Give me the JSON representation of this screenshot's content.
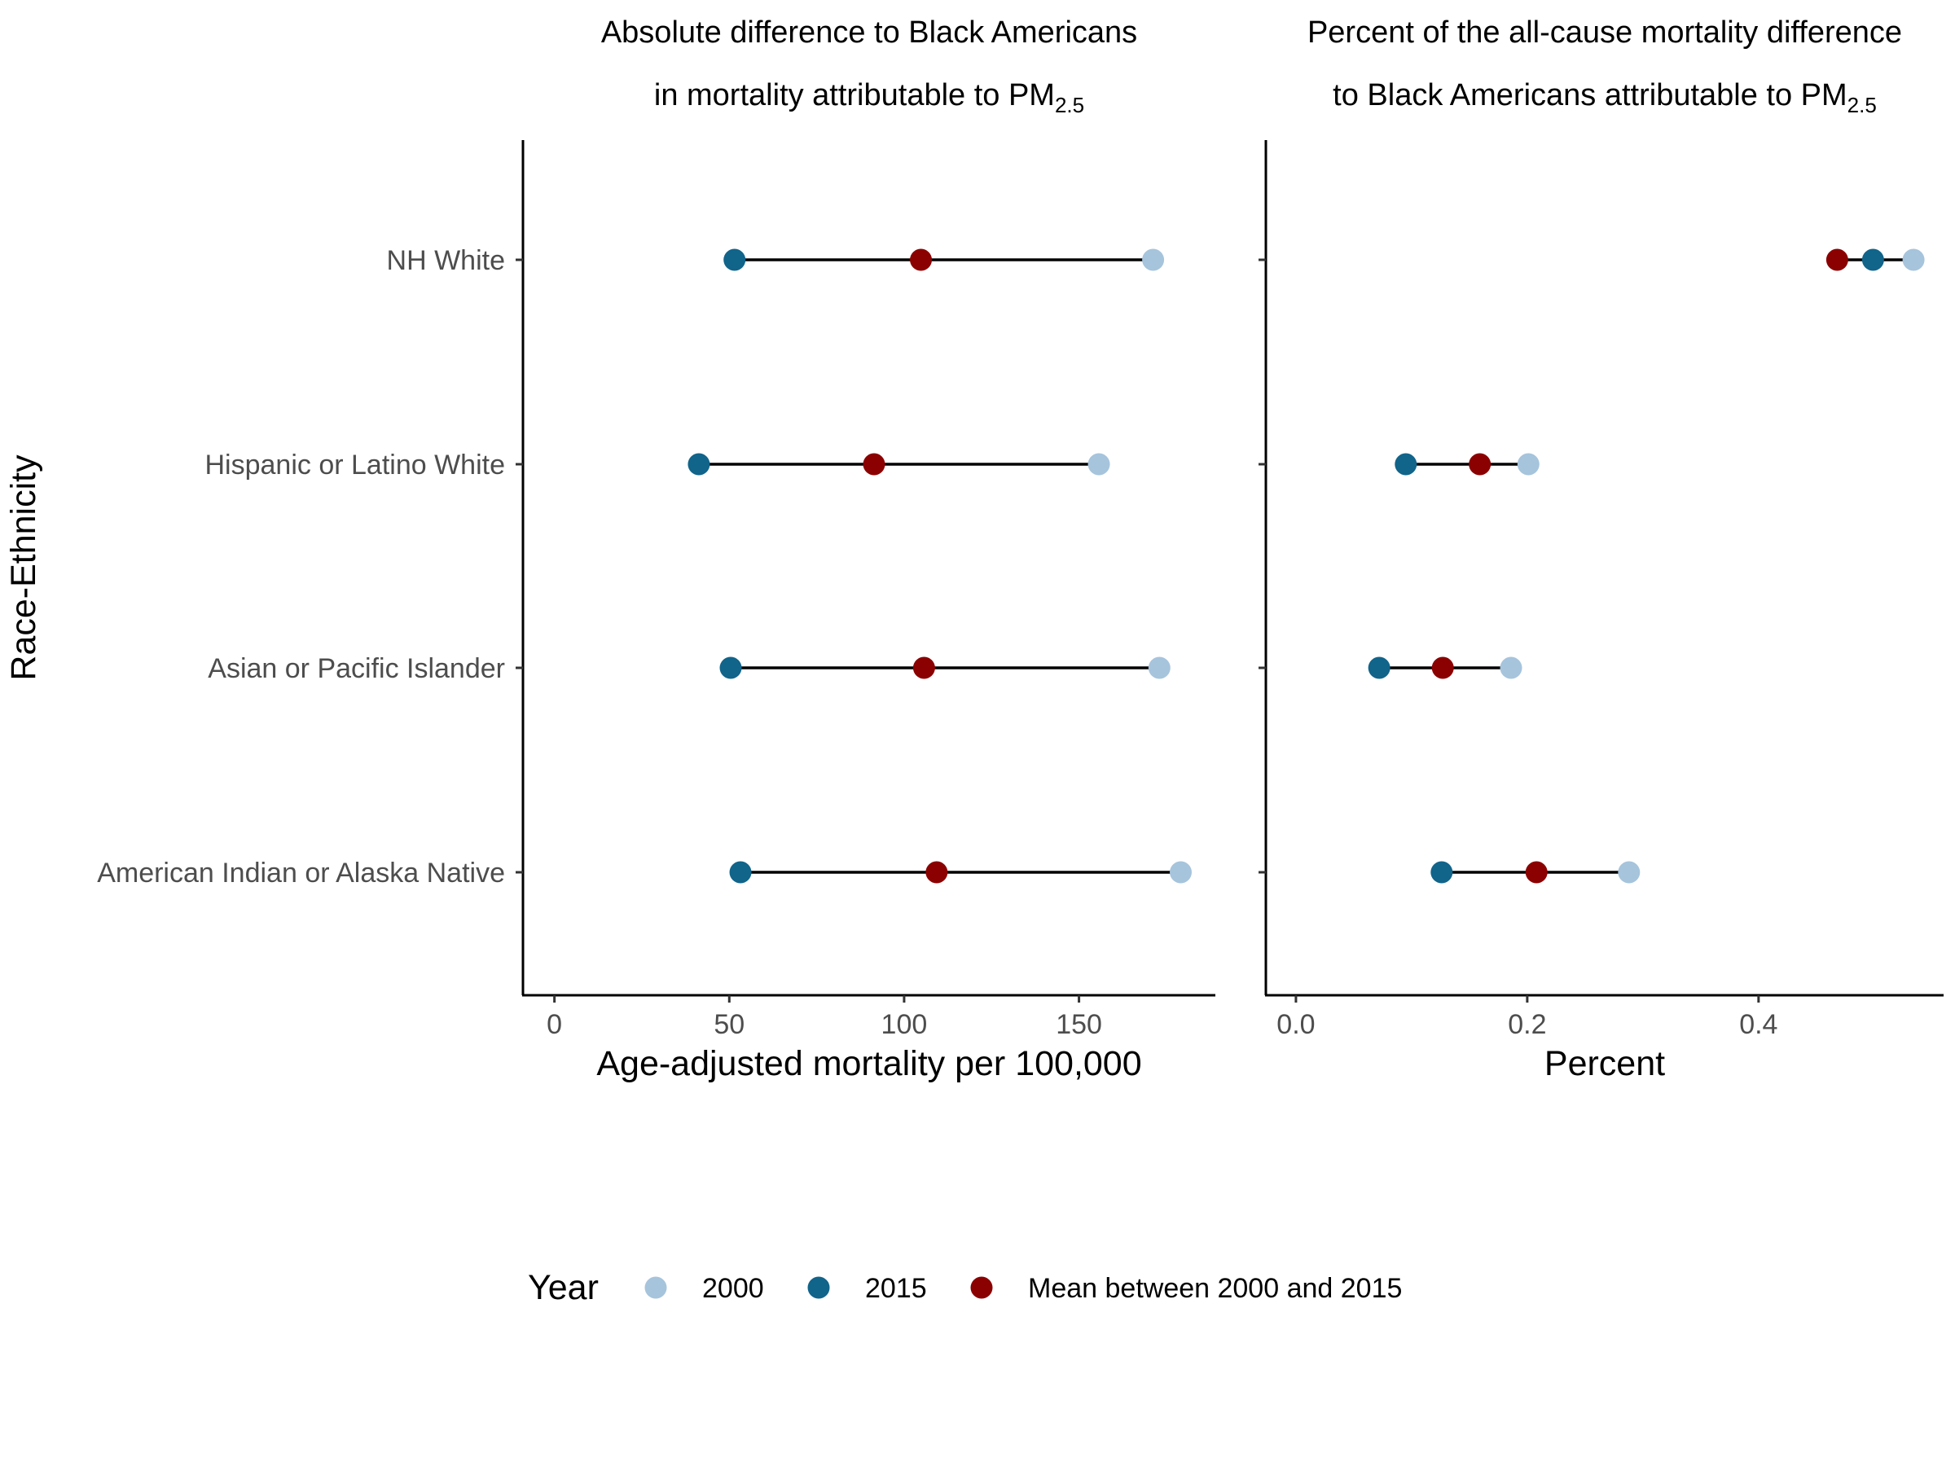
{
  "chart_data": {
    "type": "dumbbell",
    "y_axis_label": "Race-Ethnicity",
    "categories": [
      "NH White",
      "Hispanic or Latino White",
      "Asian or Pacific Islander",
      "American Indian or Alaska Native"
    ],
    "legend": {
      "title": "Year",
      "placement": "bottom",
      "entries": [
        {
          "key": "y2000",
          "label": "2000",
          "color": "#a6c4dc"
        },
        {
          "key": "y2015",
          "label": "2015",
          "color": "#11648a"
        },
        {
          "key": "mean",
          "label": "Mean between 2000 and 2015",
          "color": "#8b0000"
        }
      ]
    },
    "panels": [
      {
        "title_line1": "Absolute difference to Black Americans",
        "title_line2": "in mortality attributable to PM",
        "title_sub": "2.5",
        "xlabel": "Age-adjusted mortality per 100,000",
        "xlim": [
          -9,
          189
        ],
        "ticks": [
          0,
          50,
          100,
          150
        ],
        "tick_labels": [
          "0",
          "50",
          "100",
          "150"
        ],
        "data": [
          {
            "category": "NH White",
            "y2000": 171.2,
            "y2015": 51.5,
            "mean": 104.8
          },
          {
            "category": "Hispanic or Latino White",
            "y2000": 155.7,
            "y2015": 41.3,
            "mean": 91.4
          },
          {
            "category": "Asian or Pacific Islander",
            "y2000": 173.0,
            "y2015": 50.4,
            "mean": 105.7
          },
          {
            "category": "American Indian or Alaska Native",
            "y2000": 179.1,
            "y2015": 53.2,
            "mean": 109.3
          }
        ]
      },
      {
        "title_line1": "Percent of the all-cause mortality difference",
        "title_line2": "to Black Americans attributable to PM",
        "title_sub": "2.5",
        "xlabel": "Percent",
        "xlim": [
          -0.026,
          0.56
        ],
        "ticks": [
          0.0,
          0.2,
          0.4
        ],
        "tick_labels": [
          "0.0",
          "0.2",
          "0.4"
        ],
        "data": [
          {
            "category": "NH White",
            "y2000": 0.534,
            "y2015": 0.499,
            "mean": 0.468
          },
          {
            "category": "Hispanic or Latino White",
            "y2000": 0.201,
            "y2015": 0.095,
            "mean": 0.159
          },
          {
            "category": "Asian or Pacific Islander",
            "y2000": 0.186,
            "y2015": 0.072,
            "mean": 0.127
          },
          {
            "category": "American Indian or Alaska Native",
            "y2000": 0.288,
            "y2015": 0.126,
            "mean": 0.208
          }
        ]
      }
    ]
  }
}
